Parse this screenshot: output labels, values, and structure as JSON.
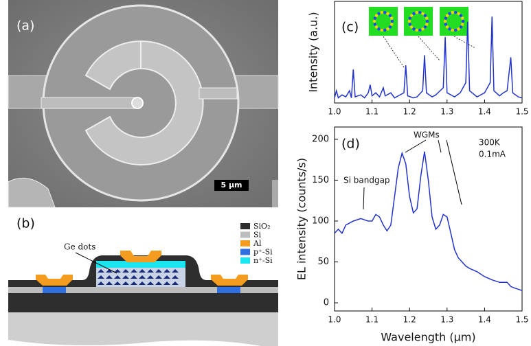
{
  "panels": {
    "a": {
      "label": "(a)",
      "scale_bar": "5 μm"
    },
    "b": {
      "label": "(b)",
      "annotation": "Ge dots",
      "legend": [
        {
          "name": "SiO₂",
          "color": "#2e2e2e"
        },
        {
          "name": "Si",
          "color": "#bdbdbd"
        },
        {
          "name": "Al",
          "color": "#f39c1f"
        },
        {
          "name": "p⁺-Si",
          "color": "#2f6fe0"
        },
        {
          "name": "n⁺-Si",
          "color": "#19e6f0"
        }
      ]
    }
  },
  "chart_data": [
    {
      "type": "line",
      "label": "(c)",
      "y_label": "Intensity (a.u.)",
      "color": "#2233cc",
      "x": [
        1.0,
        1.005,
        1.01,
        1.02,
        1.03,
        1.04,
        1.045,
        1.05,
        1.055,
        1.07,
        1.08,
        1.09,
        1.095,
        1.1,
        1.11,
        1.12,
        1.13,
        1.135,
        1.15,
        1.16,
        1.17,
        1.185,
        1.19,
        1.195,
        1.21,
        1.22,
        1.235,
        1.24,
        1.245,
        1.26,
        1.27,
        1.29,
        1.295,
        1.3,
        1.32,
        1.335,
        1.35,
        1.355,
        1.36,
        1.38,
        1.4,
        1.415,
        1.42,
        1.425,
        1.44,
        1.45,
        1.46,
        1.47,
        1.475,
        1.49,
        1.5
      ],
      "values": [
        0.05,
        0.12,
        0.05,
        0.08,
        0.06,
        0.12,
        0.05,
        0.33,
        0.06,
        0.08,
        0.05,
        0.1,
        0.18,
        0.07,
        0.1,
        0.06,
        0.15,
        0.07,
        0.1,
        0.05,
        0.07,
        0.1,
        0.37,
        0.07,
        0.05,
        0.06,
        0.12,
        0.47,
        0.1,
        0.06,
        0.08,
        0.15,
        0.65,
        0.1,
        0.06,
        0.1,
        0.2,
        0.8,
        0.12,
        0.06,
        0.1,
        0.2,
        0.85,
        0.12,
        0.07,
        0.1,
        0.12,
        0.45,
        0.1,
        0.06,
        0.05
      ],
      "xlim": [
        1.0,
        1.5
      ],
      "xticks": [
        {
          "value": 1,
          "label": "1.0"
        },
        1.1,
        1.2,
        1.3,
        1.4,
        1.5
      ],
      "ylim": [
        0,
        1
      ]
    },
    {
      "type": "line",
      "label": "(d)",
      "x_label": "Wavelength (μm)",
      "y_label": "EL intensity (counts/s)",
      "color": "#2233cc",
      "annotations": [
        "Si bandgap",
        "WGMs",
        "300K",
        "0.1mA"
      ],
      "x": [
        1.0,
        1.01,
        1.02,
        1.03,
        1.05,
        1.07,
        1.09,
        1.1,
        1.11,
        1.12,
        1.13,
        1.14,
        1.15,
        1.16,
        1.17,
        1.18,
        1.19,
        1.2,
        1.21,
        1.22,
        1.23,
        1.24,
        1.25,
        1.26,
        1.27,
        1.28,
        1.29,
        1.3,
        1.31,
        1.32,
        1.33,
        1.34,
        1.35,
        1.36,
        1.38,
        1.4,
        1.42,
        1.44,
        1.46,
        1.47,
        1.48,
        1.5
      ],
      "values": [
        85,
        90,
        85,
        95,
        100,
        103,
        100,
        100,
        108,
        105,
        95,
        88,
        95,
        130,
        165,
        183,
        170,
        130,
        110,
        115,
        155,
        185,
        150,
        105,
        90,
        95,
        108,
        105,
        85,
        65,
        55,
        50,
        45,
        42,
        38,
        32,
        28,
        25,
        25,
        20,
        18,
        15
      ],
      "xlim": [
        1.0,
        1.5
      ],
      "xticks": [
        {
          "value": 1,
          "label": "1.0"
        },
        1.1,
        1.2,
        1.3,
        1.4,
        1.5
      ],
      "ylim": [
        -10,
        215
      ],
      "yticks": [
        0,
        50,
        100,
        150,
        200
      ]
    }
  ]
}
